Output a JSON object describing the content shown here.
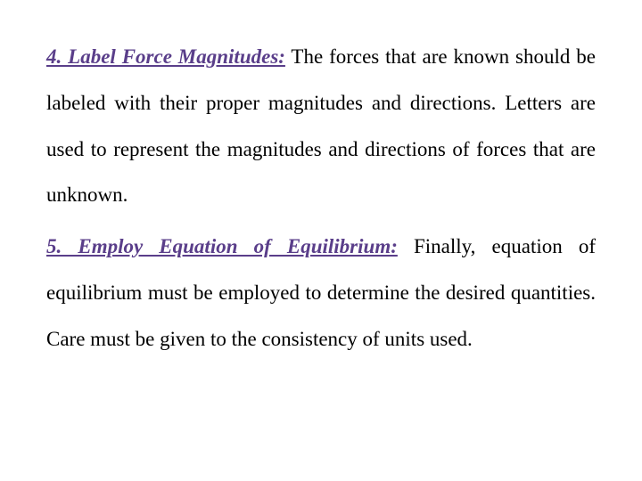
{
  "document": {
    "font_family": "Times New Roman",
    "body_fontsize_pt": 17,
    "body_color": "#000000",
    "heading_color": "#5a3e8a",
    "background_color": "#ffffff",
    "line_height": 2.25,
    "text_align": "justify",
    "paragraphs": [
      {
        "heading": "4. Label Force Magnitudes:",
        "body": " The forces that are known should be labeled with their proper magnitudes and directions. Letters are used to represent the magnitudes and directions of forces that are unknown."
      },
      {
        "heading": "5. Employ Equation of Equilibrium:",
        "body": " Finally, equation of equilibrium must be employed to determine the desired quantities. Care must be given to the consistency of units used."
      }
    ]
  }
}
